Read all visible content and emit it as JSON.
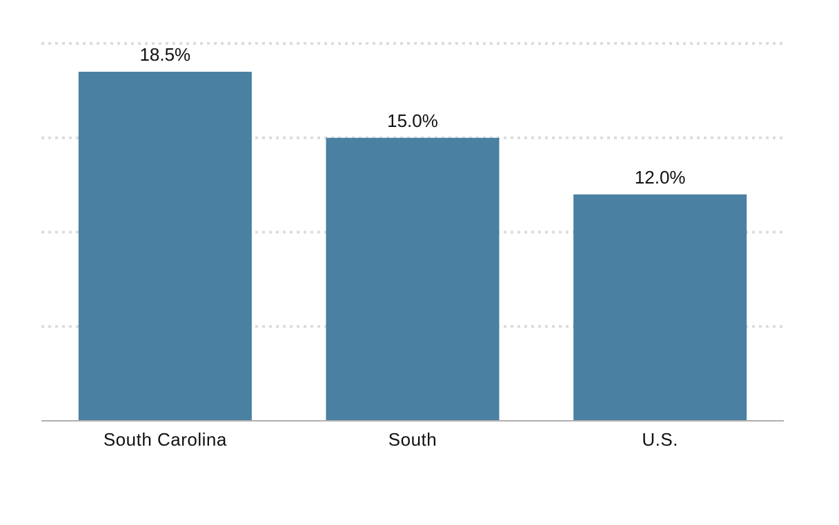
{
  "chart_data": {
    "type": "bar",
    "categories": [
      "South Carolina",
      "South",
      "U.S."
    ],
    "values": [
      18.5,
      15.0,
      12.0
    ],
    "value_labels": [
      "18.5%",
      "15.0%",
      "12.0%"
    ],
    "title": "",
    "xlabel": "",
    "ylabel": "",
    "ylim": [
      0,
      20
    ],
    "grid": true,
    "bar_color": "#4a80a1"
  }
}
